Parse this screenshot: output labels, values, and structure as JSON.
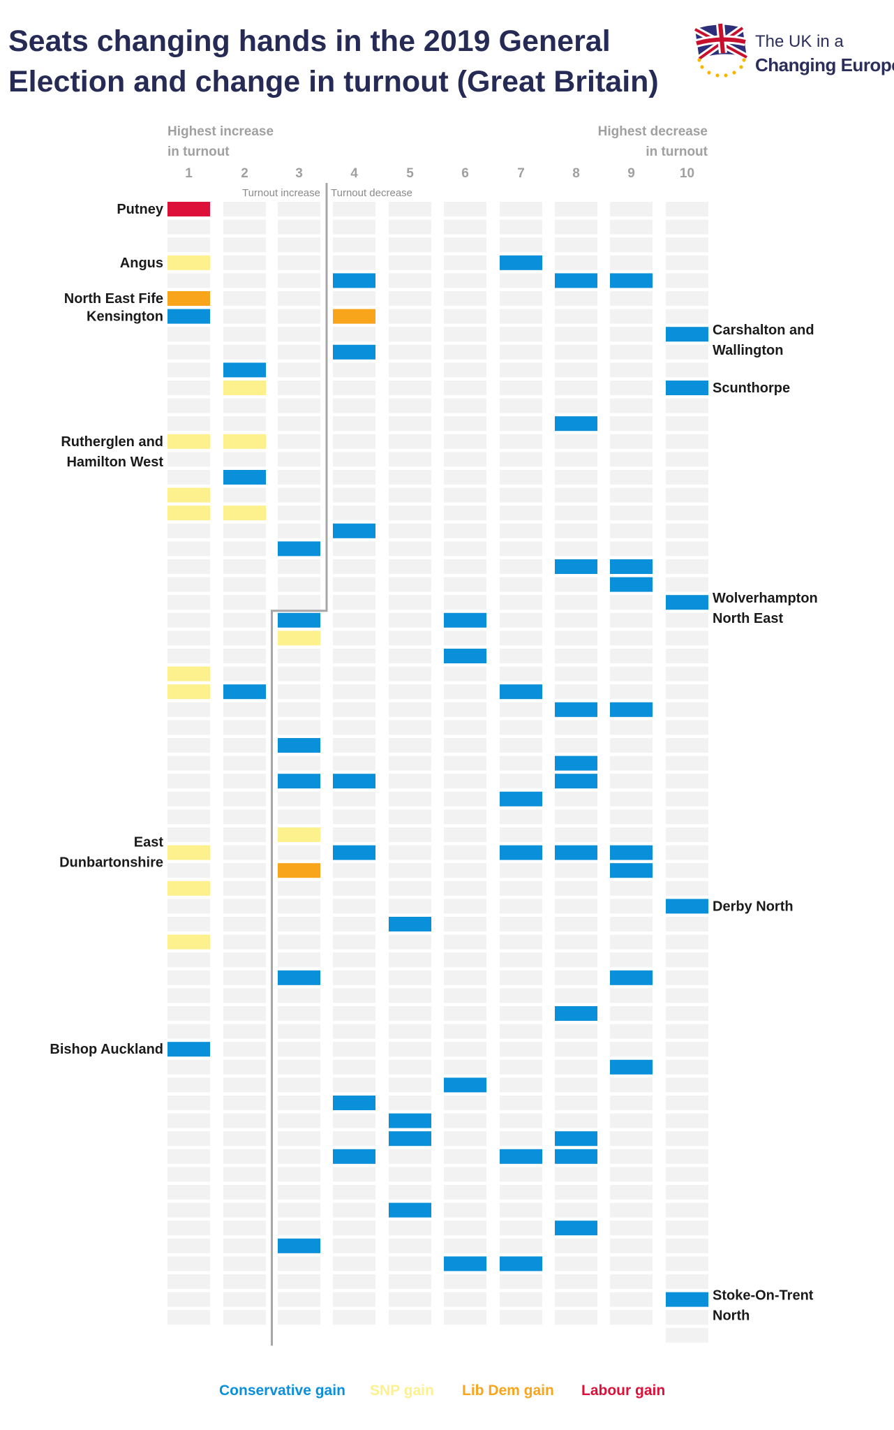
{
  "header": {
    "title_line1": "Seats changing hands in the 2019 General",
    "title_line2": "Election and change in turnout (Great Britain)"
  },
  "logo": {
    "line1": "The UK in a",
    "line2": "Changing Europe"
  },
  "colors": {
    "conservative": "#0a90db",
    "snp": "#fdf18e",
    "libdem": "#f9a51c",
    "labour": "#dd1039",
    "empty": "#f2f2f2",
    "axis_text": "#a0a0a0",
    "label_text": "#1a1a1a",
    "divider": "#a6a6a6",
    "title": "#262b55"
  },
  "chart_data": {
    "type": "table",
    "title": "Seats changing hands in the 2019 General Election and change in turnout (Great Britain)",
    "x_axis_note_left": [
      "Highest increase",
      "in turnout"
    ],
    "x_axis_note_right": [
      "Highest decrease",
      "in turnout"
    ],
    "region_labels": {
      "increase": "Turnout increase",
      "decrease": "Turnout decrease"
    },
    "columns": [
      "1",
      "2",
      "3",
      "4",
      "5",
      "6",
      "7",
      "8",
      "9",
      "10"
    ],
    "column_rows": [
      63,
      63,
      63,
      63,
      63,
      63,
      63,
      63,
      63,
      64
    ],
    "rows_per_column": 63,
    "legend": [
      {
        "key": "conservative",
        "label": "Conservative gain"
      },
      {
        "key": "snp",
        "label": "SNP gain"
      },
      {
        "key": "libdem",
        "label": "Lib Dem gain"
      },
      {
        "key": "labour",
        "label": "Labour gain"
      }
    ],
    "gains": [
      {
        "col": 1,
        "row": 1,
        "party": "labour"
      },
      {
        "col": 1,
        "row": 4,
        "party": "snp"
      },
      {
        "col": 1,
        "row": 6,
        "party": "libdem"
      },
      {
        "col": 1,
        "row": 7,
        "party": "conservative"
      },
      {
        "col": 1,
        "row": 14,
        "party": "snp"
      },
      {
        "col": 1,
        "row": 17,
        "party": "snp"
      },
      {
        "col": 1,
        "row": 18,
        "party": "snp"
      },
      {
        "col": 1,
        "row": 27,
        "party": "snp"
      },
      {
        "col": 1,
        "row": 28,
        "party": "snp"
      },
      {
        "col": 1,
        "row": 37,
        "party": "snp"
      },
      {
        "col": 1,
        "row": 39,
        "party": "snp"
      },
      {
        "col": 1,
        "row": 42,
        "party": "snp"
      },
      {
        "col": 1,
        "row": 48,
        "party": "conservative"
      },
      {
        "col": 2,
        "row": 10,
        "party": "conservative"
      },
      {
        "col": 2,
        "row": 11,
        "party": "snp"
      },
      {
        "col": 2,
        "row": 14,
        "party": "snp"
      },
      {
        "col": 2,
        "row": 16,
        "party": "conservative"
      },
      {
        "col": 2,
        "row": 18,
        "party": "snp"
      },
      {
        "col": 2,
        "row": 28,
        "party": "conservative"
      },
      {
        "col": 3,
        "row": 20,
        "party": "conservative"
      },
      {
        "col": 3,
        "row": 24,
        "party": "conservative"
      },
      {
        "col": 3,
        "row": 25,
        "party": "snp"
      },
      {
        "col": 3,
        "row": 31,
        "party": "conservative"
      },
      {
        "col": 3,
        "row": 33,
        "party": "conservative"
      },
      {
        "col": 3,
        "row": 36,
        "party": "snp"
      },
      {
        "col": 3,
        "row": 38,
        "party": "libdem"
      },
      {
        "col": 3,
        "row": 44,
        "party": "conservative"
      },
      {
        "col": 3,
        "row": 59,
        "party": "conservative"
      },
      {
        "col": 4,
        "row": 5,
        "party": "conservative"
      },
      {
        "col": 4,
        "row": 7,
        "party": "libdem"
      },
      {
        "col": 4,
        "row": 9,
        "party": "conservative"
      },
      {
        "col": 4,
        "row": 19,
        "party": "conservative"
      },
      {
        "col": 4,
        "row": 33,
        "party": "conservative"
      },
      {
        "col": 4,
        "row": 37,
        "party": "conservative"
      },
      {
        "col": 4,
        "row": 51,
        "party": "conservative"
      },
      {
        "col": 4,
        "row": 54,
        "party": "conservative"
      },
      {
        "col": 5,
        "row": 41,
        "party": "conservative"
      },
      {
        "col": 5,
        "row": 52,
        "party": "conservative"
      },
      {
        "col": 5,
        "row": 53,
        "party": "conservative"
      },
      {
        "col": 5,
        "row": 57,
        "party": "conservative"
      },
      {
        "col": 6,
        "row": 24,
        "party": "conservative"
      },
      {
        "col": 6,
        "row": 26,
        "party": "conservative"
      },
      {
        "col": 6,
        "row": 50,
        "party": "conservative"
      },
      {
        "col": 6,
        "row": 60,
        "party": "conservative"
      },
      {
        "col": 7,
        "row": 4,
        "party": "conservative"
      },
      {
        "col": 7,
        "row": 28,
        "party": "conservative"
      },
      {
        "col": 7,
        "row": 34,
        "party": "conservative"
      },
      {
        "col": 7,
        "row": 37,
        "party": "conservative"
      },
      {
        "col": 7,
        "row": 54,
        "party": "conservative"
      },
      {
        "col": 7,
        "row": 60,
        "party": "conservative"
      },
      {
        "col": 8,
        "row": 5,
        "party": "conservative"
      },
      {
        "col": 8,
        "row": 13,
        "party": "conservative"
      },
      {
        "col": 8,
        "row": 21,
        "party": "conservative"
      },
      {
        "col": 8,
        "row": 29,
        "party": "conservative"
      },
      {
        "col": 8,
        "row": 32,
        "party": "conservative"
      },
      {
        "col": 8,
        "row": 33,
        "party": "conservative"
      },
      {
        "col": 8,
        "row": 37,
        "party": "conservative"
      },
      {
        "col": 8,
        "row": 46,
        "party": "conservative"
      },
      {
        "col": 8,
        "row": 53,
        "party": "conservative"
      },
      {
        "col": 8,
        "row": 54,
        "party": "conservative"
      },
      {
        "col": 8,
        "row": 58,
        "party": "conservative"
      },
      {
        "col": 9,
        "row": 5,
        "party": "conservative"
      },
      {
        "col": 9,
        "row": 21,
        "party": "conservative"
      },
      {
        "col": 9,
        "row": 22,
        "party": "conservative"
      },
      {
        "col": 9,
        "row": 29,
        "party": "conservative"
      },
      {
        "col": 9,
        "row": 37,
        "party": "conservative"
      },
      {
        "col": 9,
        "row": 38,
        "party": "conservative"
      },
      {
        "col": 9,
        "row": 44,
        "party": "conservative"
      },
      {
        "col": 9,
        "row": 49,
        "party": "conservative"
      },
      {
        "col": 10,
        "row": 8,
        "party": "conservative"
      },
      {
        "col": 10,
        "row": 11,
        "party": "conservative"
      },
      {
        "col": 10,
        "row": 23,
        "party": "conservative"
      },
      {
        "col": 10,
        "row": 40,
        "party": "conservative"
      },
      {
        "col": 10,
        "row": 62,
        "party": "conservative"
      }
    ],
    "annotations": [
      {
        "text": [
          "Putney"
        ],
        "col": 1,
        "row": 1,
        "side": "left"
      },
      {
        "text": [
          "Angus"
        ],
        "col": 1,
        "row": 4,
        "side": "left"
      },
      {
        "text": [
          "North East Fife"
        ],
        "col": 1,
        "row": 6,
        "side": "left"
      },
      {
        "text": [
          "Kensington"
        ],
        "col": 1,
        "row": 7,
        "side": "left"
      },
      {
        "text": [
          "Rutherglen and",
          "Hamilton West"
        ],
        "col": 1,
        "row": 14,
        "side": "left"
      },
      {
        "text": [
          "East",
          "Dunbartonshire"
        ],
        "col": 1,
        "row": 37,
        "side": "left"
      },
      {
        "text": [
          "Bishop Auckland"
        ],
        "col": 1,
        "row": 48,
        "side": "left"
      },
      {
        "text": [
          "Carshalton and",
          "Wallington"
        ],
        "col": 10,
        "row": 8,
        "side": "right"
      },
      {
        "text": [
          "Scunthorpe"
        ],
        "col": 10,
        "row": 11,
        "side": "right"
      },
      {
        "text": [
          "Wolverhampton",
          "North East"
        ],
        "col": 10,
        "row": 23,
        "side": "right"
      },
      {
        "text": [
          "Derby North"
        ],
        "col": 10,
        "row": 40,
        "side": "right"
      },
      {
        "text": [
          "Stoke-On-Trent",
          "North"
        ],
        "col": 10,
        "row": 62,
        "side": "right"
      }
    ],
    "divider": {
      "between_columns": [
        3,
        4
      ],
      "upper_rows": 23,
      "lower_between_columns": [
        2,
        3
      ]
    }
  }
}
